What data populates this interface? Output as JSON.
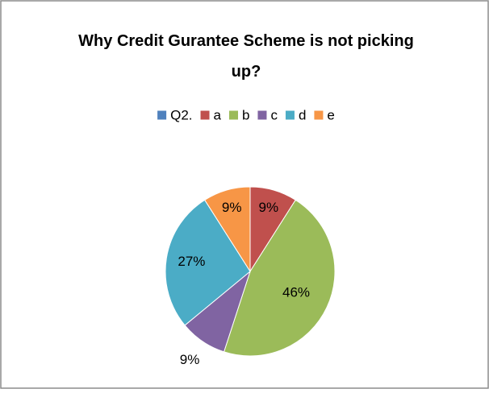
{
  "chart_data": {
    "type": "pie",
    "title": "Why Credit Gurantee Scheme is not picking up?",
    "categories": [
      "Q2.",
      "a",
      "b",
      "c",
      "d",
      "e"
    ],
    "values": [
      0,
      9,
      46,
      9,
      27,
      9
    ],
    "value_labels": [
      null,
      "9%",
      "46%",
      "9%",
      "27%",
      "9%"
    ],
    "colors": [
      "#4f81bd",
      "#c0504d",
      "#9bbb59",
      "#8064a2",
      "#4bacc6",
      "#f79646"
    ],
    "legend": "top"
  }
}
